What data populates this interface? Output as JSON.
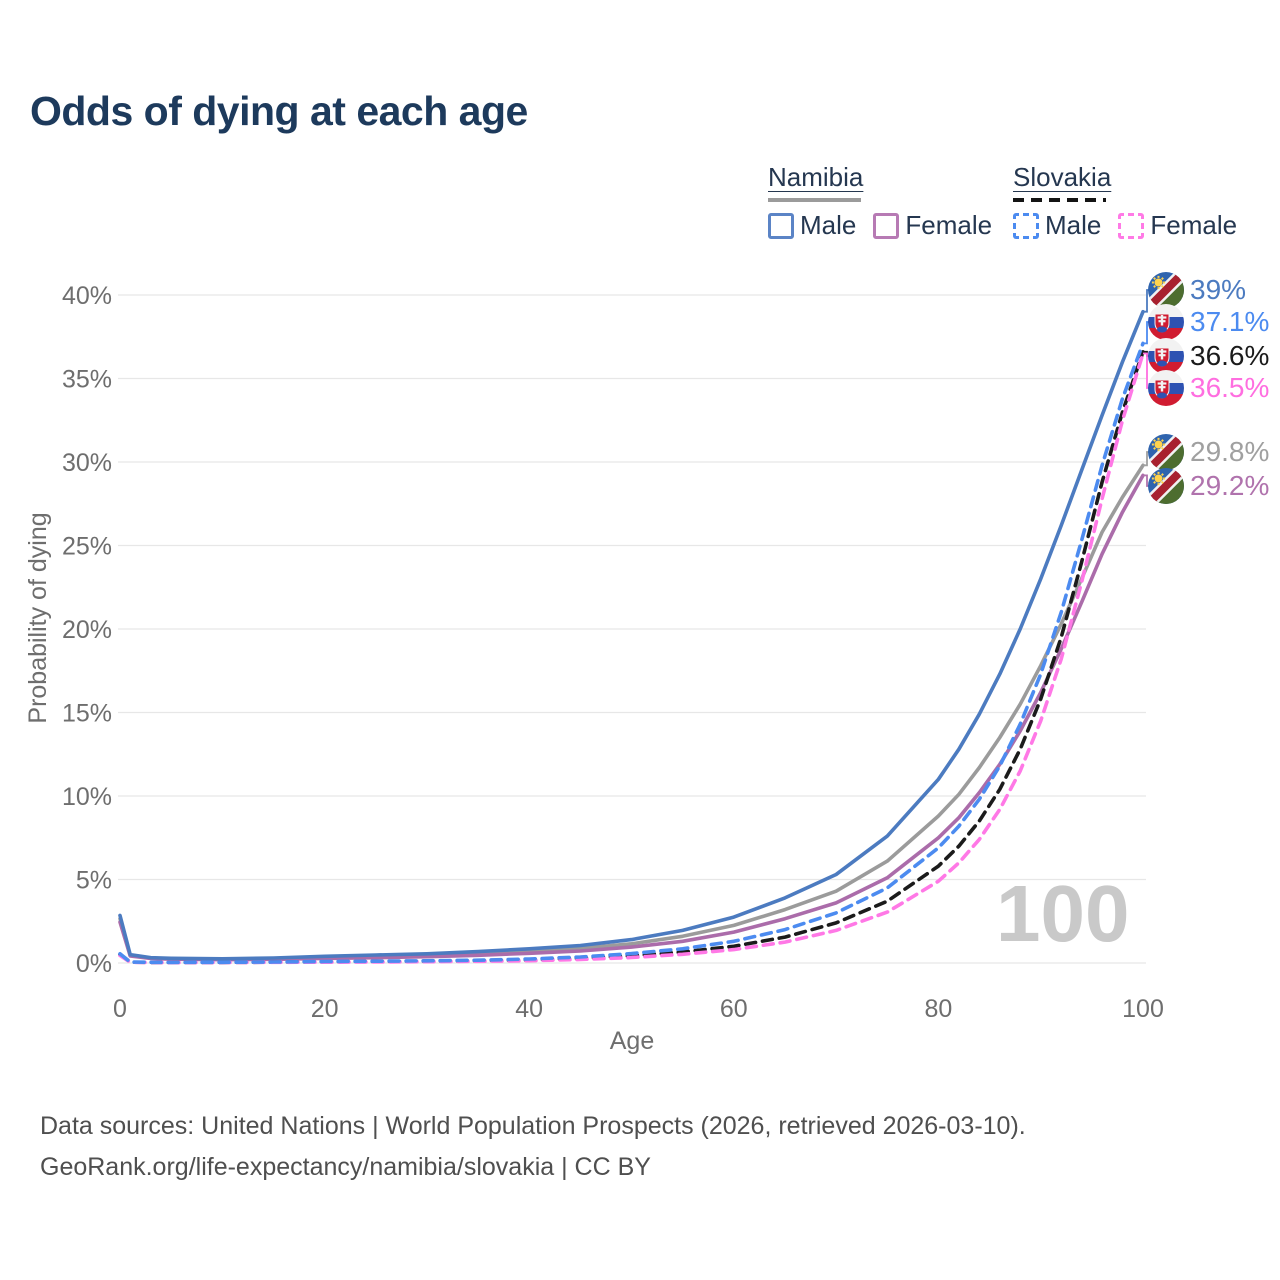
{
  "title": "Odds of dying at each age",
  "watermark": "100",
  "legend": {
    "groups": [
      {
        "label": "Namibia",
        "line_style": "solid",
        "sample_color": "#9b9b9b",
        "items": [
          {
            "label": "Male",
            "color": "#5b84c6",
            "dash": false
          },
          {
            "label": "Female",
            "color": "#b77ab4",
            "dash": false
          }
        ]
      },
      {
        "label": "Slovakia",
        "line_style": "dashed",
        "sample_color": "#141414",
        "items": [
          {
            "label": "Male",
            "color": "#4c8bf0",
            "dash": true
          },
          {
            "label": "Female",
            "color": "#ff7ae6",
            "dash": true
          }
        ]
      }
    ]
  },
  "footer": {
    "line1": "Data sources: United Nations | World Population Prospects (2026, retrieved 2026-03-10).",
    "line2": "GeoRank.org/life-expectancy/namibia/slovakia | CC BY"
  },
  "chart_data": {
    "type": "line",
    "title": "Odds of dying at each age",
    "xlabel": "Age",
    "ylabel": "Probability of dying",
    "xlim": [
      0,
      100
    ],
    "ylim": [
      0,
      40
    ],
    "grid": "horizontal-only",
    "xticks": [
      0,
      20,
      40,
      60,
      80,
      100
    ],
    "xtick_labels": [
      "0",
      "20",
      "40",
      "60",
      "80",
      "100"
    ],
    "yticks": [
      0,
      5,
      10,
      15,
      20,
      25,
      30,
      35,
      40
    ],
    "ytick_labels": [
      "0%",
      "5%",
      "10%",
      "15%",
      "20%",
      "25%",
      "30%",
      "35%",
      "40%"
    ],
    "x": [
      0,
      1,
      3,
      5,
      10,
      15,
      20,
      25,
      30,
      35,
      40,
      45,
      50,
      55,
      60,
      65,
      70,
      75,
      80,
      82,
      84,
      86,
      88,
      90,
      92,
      94,
      96,
      98,
      100
    ],
    "series": [
      {
        "name": "Namibia Male",
        "country": "Namibia",
        "sex": "Male",
        "color": "#4c7bc0",
        "dash": "solid",
        "values": [
          2.85,
          0.5,
          0.32,
          0.28,
          0.25,
          0.3,
          0.4,
          0.48,
          0.55,
          0.68,
          0.85,
          1.05,
          1.4,
          1.95,
          2.75,
          3.9,
          5.3,
          7.6,
          11.0,
          12.8,
          14.9,
          17.3,
          20.0,
          23.0,
          26.2,
          29.5,
          32.8,
          36.0,
          39.0
        ]
      },
      {
        "name": "Namibia",
        "country": "Namibia",
        "sex": "Both",
        "color": "#9b9b9b",
        "dash": "solid",
        "values": [
          2.65,
          0.46,
          0.3,
          0.26,
          0.22,
          0.26,
          0.33,
          0.4,
          0.46,
          0.56,
          0.7,
          0.88,
          1.15,
          1.6,
          2.25,
          3.2,
          4.3,
          6.1,
          8.8,
          10.1,
          11.7,
          13.5,
          15.5,
          17.8,
          20.3,
          23.0,
          25.8,
          27.9,
          29.8
        ]
      },
      {
        "name": "Namibia Female",
        "country": "Namibia",
        "sex": "Female",
        "color": "#ab6caa",
        "dash": "solid",
        "values": [
          2.45,
          0.42,
          0.27,
          0.23,
          0.2,
          0.22,
          0.27,
          0.32,
          0.38,
          0.46,
          0.58,
          0.72,
          0.95,
          1.3,
          1.85,
          2.65,
          3.6,
          5.1,
          7.5,
          8.7,
          10.2,
          11.9,
          13.9,
          16.2,
          18.8,
          21.6,
          24.5,
          27.0,
          29.2
        ]
      },
      {
        "name": "Slovakia Male",
        "country": "Slovakia",
        "sex": "Male",
        "color": "#4c8bf0",
        "dash": "dashed",
        "values": [
          0.55,
          0.06,
          0.04,
          0.035,
          0.04,
          0.06,
          0.09,
          0.11,
          0.13,
          0.17,
          0.24,
          0.36,
          0.56,
          0.85,
          1.3,
          2.0,
          3.0,
          4.5,
          6.9,
          8.2,
          9.8,
          11.8,
          14.3,
          17.3,
          21.0,
          25.3,
          29.8,
          33.8,
          37.1
        ]
      },
      {
        "name": "Slovakia",
        "country": "Slovakia",
        "sex": "Both",
        "color": "#1b1b1b",
        "dash": "dashed",
        "values": [
          0.5,
          0.05,
          0.033,
          0.03,
          0.035,
          0.05,
          0.07,
          0.085,
          0.1,
          0.13,
          0.18,
          0.28,
          0.43,
          0.66,
          1.0,
          1.55,
          2.4,
          3.7,
          5.8,
          7.0,
          8.5,
          10.4,
          12.8,
          15.8,
          19.5,
          24.0,
          28.8,
          33.0,
          36.6
        ]
      },
      {
        "name": "Slovakia Female",
        "country": "Slovakia",
        "sex": "Female",
        "color": "#ff78e6",
        "dash": "dashed",
        "values": [
          0.45,
          0.045,
          0.028,
          0.025,
          0.03,
          0.04,
          0.05,
          0.06,
          0.075,
          0.1,
          0.14,
          0.21,
          0.33,
          0.52,
          0.8,
          1.25,
          1.95,
          3.05,
          4.9,
          6.0,
          7.4,
          9.2,
          11.5,
          14.5,
          18.2,
          22.8,
          27.8,
          32.5,
          36.5
        ]
      }
    ],
    "end_labels": [
      {
        "text": "39%",
        "series": "Namibia Male",
        "flag": "namibia",
        "color": "#4c7bc0"
      },
      {
        "text": "37.1%",
        "series": "Slovakia Male",
        "flag": "slovakia",
        "color": "#4c8bf0"
      },
      {
        "text": "36.6%",
        "series": "Slovakia",
        "flag": "slovakia",
        "color": "#1b1b1b"
      },
      {
        "text": "36.5%",
        "series": "Slovakia Female",
        "flag": "slovakia",
        "color": "#ff6ee0"
      },
      {
        "text": "29.8%",
        "series": "Namibia",
        "flag": "namibia",
        "color": "#a0a0a0"
      },
      {
        "text": "29.2%",
        "series": "Namibia Female",
        "flag": "namibia",
        "color": "#b073ad"
      }
    ]
  }
}
